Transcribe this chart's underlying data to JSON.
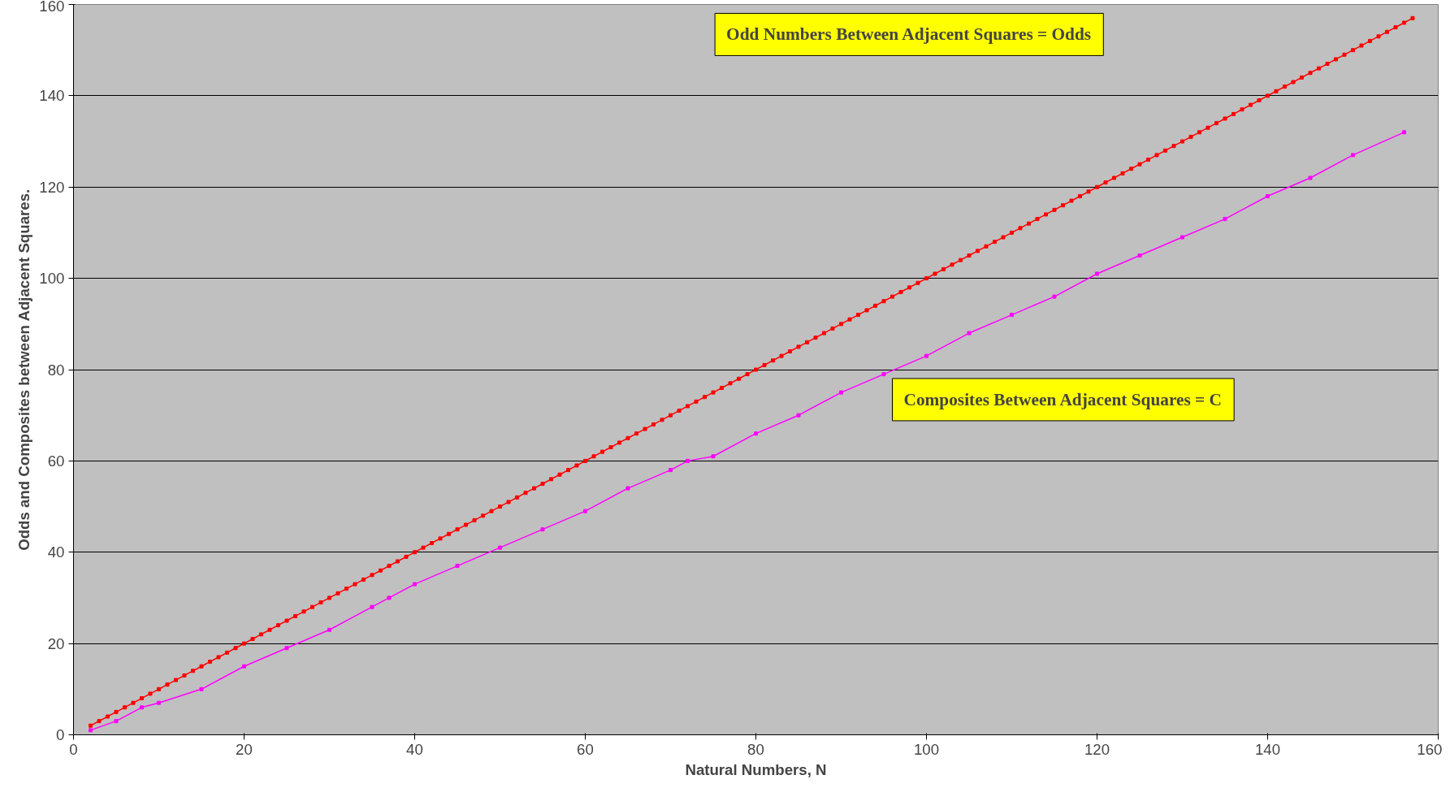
{
  "chart_data": {
    "type": "line",
    "xlabel": "Natural Numbers, N",
    "ylabel": "Odds and Composites between Adjacent Squares.",
    "annotations": [
      "Odd Numbers Between Adjacent Squares = Odds",
      "Composites Between Adjacent Squares = C"
    ],
    "xlim": [
      0,
      160
    ],
    "xticks": [
      0,
      20,
      40,
      60,
      80,
      100,
      120,
      140,
      160
    ],
    "ylim": [
      0,
      160
    ],
    "yticks": [
      0,
      20,
      40,
      60,
      80,
      100,
      120,
      140,
      160
    ],
    "grid": "y",
    "marker": "square",
    "line_style": "solid",
    "series": [
      {
        "color": "#ff0000",
        "x": [
          2,
          3,
          4,
          5,
          6,
          7,
          8,
          9,
          10,
          11,
          12,
          13,
          14,
          15,
          16,
          17,
          18,
          19,
          20,
          21,
          22,
          23,
          24,
          25,
          26,
          27,
          28,
          29,
          30,
          31,
          32,
          33,
          34,
          35,
          36,
          37,
          38,
          39,
          40,
          41,
          42,
          43,
          44,
          45,
          46,
          47,
          48,
          49,
          50,
          51,
          52,
          53,
          54,
          55,
          56,
          57,
          58,
          59,
          60,
          61,
          62,
          63,
          64,
          65,
          66,
          67,
          68,
          69,
          70,
          71,
          72,
          73,
          74,
          75,
          76,
          77,
          78,
          79,
          80,
          81,
          82,
          83,
          84,
          85,
          86,
          87,
          88,
          89,
          90,
          91,
          92,
          93,
          94,
          95,
          96,
          97,
          98,
          99,
          100,
          101,
          102,
          103,
          104,
          105,
          106,
          107,
          108,
          109,
          110,
          111,
          112,
          113,
          114,
          115,
          116,
          117,
          118,
          119,
          120,
          121,
          122,
          123,
          124,
          125,
          126,
          127,
          128,
          129,
          130,
          131,
          132,
          133,
          134,
          135,
          136,
          137,
          138,
          139,
          140,
          141,
          142,
          143,
          144,
          145,
          146,
          147,
          148,
          149,
          150,
          151,
          152,
          153,
          154,
          155,
          156,
          157
        ],
        "values": [
          2,
          3,
          4,
          5,
          6,
          7,
          8,
          9,
          10,
          11,
          12,
          13,
          14,
          15,
          16,
          17,
          18,
          19,
          20,
          21,
          22,
          23,
          24,
          25,
          26,
          27,
          28,
          29,
          30,
          31,
          32,
          33,
          34,
          35,
          36,
          37,
          38,
          39,
          40,
          41,
          42,
          43,
          44,
          45,
          46,
          47,
          48,
          49,
          50,
          51,
          52,
          53,
          54,
          55,
          56,
          57,
          58,
          59,
          60,
          61,
          62,
          63,
          64,
          65,
          66,
          67,
          68,
          69,
          70,
          71,
          72,
          73,
          74,
          75,
          76,
          77,
          78,
          79,
          80,
          81,
          82,
          83,
          84,
          85,
          86,
          87,
          88,
          89,
          90,
          91,
          92,
          93,
          94,
          95,
          96,
          97,
          98,
          99,
          100,
          101,
          102,
          103,
          104,
          105,
          106,
          107,
          108,
          109,
          110,
          111,
          112,
          113,
          114,
          115,
          116,
          117,
          118,
          119,
          120,
          121,
          122,
          123,
          124,
          125,
          126,
          127,
          128,
          129,
          130,
          131,
          132,
          133,
          134,
          135,
          136,
          137,
          138,
          139,
          140,
          141,
          142,
          143,
          144,
          145,
          146,
          147,
          148,
          149,
          150,
          151,
          152,
          153,
          154,
          155,
          156,
          157
        ]
      },
      {
        "color": "#ff00ff",
        "x": [
          2,
          5,
          8,
          10,
          15,
          20,
          25,
          30,
          35,
          37,
          40,
          45,
          50,
          55,
          60,
          65,
          70,
          72,
          75,
          80,
          85,
          90,
          95,
          100,
          105,
          110,
          115,
          120,
          125,
          130,
          135,
          140,
          145,
          150,
          156
        ],
        "values": [
          1,
          3,
          6,
          7,
          10,
          15,
          19,
          23,
          28,
          30,
          33,
          37,
          41,
          45,
          49,
          54,
          58,
          60,
          61,
          66,
          70,
          75,
          79,
          83,
          88,
          92,
          96,
          101,
          105,
          109,
          113,
          118,
          122,
          127,
          132
        ]
      }
    ]
  }
}
